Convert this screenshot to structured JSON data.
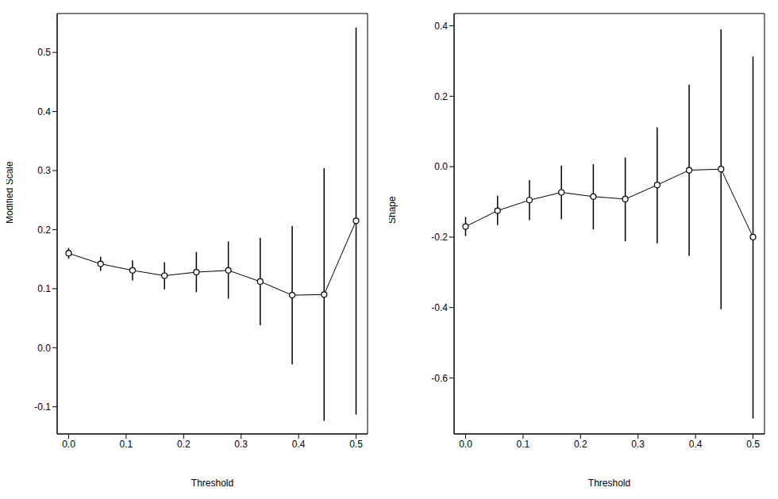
{
  "chart_data": [
    {
      "type": "line",
      "x_label": "Threshold",
      "y_label": "Modified Scale",
      "color": "#000000",
      "marker": "circle",
      "x": [
        0,
        0.0556,
        0.1111,
        0.1667,
        0.2222,
        0.2778,
        0.3333,
        0.3889,
        0.4444,
        0.5
      ],
      "values": [
        0.16,
        0.142,
        0.131,
        0.122,
        0.128,
        0.131,
        0.112,
        0.089,
        0.09,
        0.215
      ],
      "lower": [
        0.151,
        0.13,
        0.114,
        0.099,
        0.094,
        0.083,
        0.038,
        -0.028,
        -0.124,
        -0.113
      ],
      "upper": [
        0.169,
        0.154,
        0.148,
        0.145,
        0.162,
        0.18,
        0.186,
        0.206,
        0.304,
        0.542
      ],
      "xlim": [
        -0.02,
        0.52
      ],
      "xticks": [
        {
          "value": 0,
          "label": "0.0"
        },
        0.1,
        0.2,
        0.3,
        0.4,
        0.5
      ],
      "ylim": [
        -0.146,
        0.566
      ],
      "yticks": [
        -0.1,
        {
          "value": 0,
          "label": "0.0"
        },
        0.1,
        0.2,
        0.3,
        0.4,
        0.5
      ]
    },
    {
      "type": "line",
      "x_label": "Threshold",
      "y_label": "Shape",
      "color": "#000000",
      "marker": "circle",
      "x": [
        0,
        0.0556,
        0.1111,
        0.1667,
        0.2222,
        0.2778,
        0.3333,
        0.3889,
        0.4444,
        0.5
      ],
      "values": [
        -0.17,
        -0.125,
        -0.095,
        -0.073,
        -0.085,
        -0.092,
        -0.052,
        -0.01,
        -0.007,
        -0.2
      ],
      "lower": [
        -0.197,
        -0.166,
        -0.152,
        -0.149,
        -0.178,
        -0.212,
        -0.218,
        -0.253,
        -0.405,
        -0.715
      ],
      "upper": [
        -0.143,
        -0.083,
        -0.038,
        0.003,
        0.007,
        0.026,
        0.112,
        0.233,
        0.39,
        0.313
      ],
      "xlim": [
        -0.02,
        0.52
      ],
      "xticks": [
        {
          "value": 0,
          "label": "0.0"
        },
        0.1,
        0.2,
        0.3,
        0.4,
        0.5
      ],
      "ylim": [
        -0.759,
        0.435
      ],
      "yticks": [
        -0.6,
        -0.4,
        -0.2,
        {
          "value": 0,
          "label": "0.0"
        },
        0.2,
        0.4
      ]
    }
  ]
}
